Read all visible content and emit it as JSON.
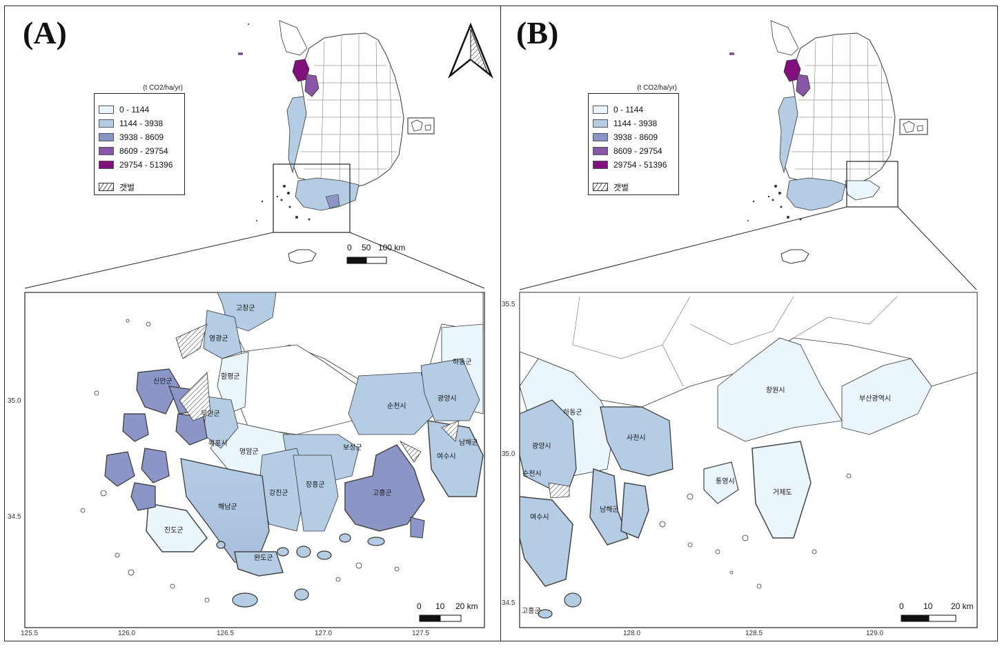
{
  "panels": {
    "a_label": "(A)",
    "b_label": "(B)"
  },
  "legend": {
    "unit": "(t CO2/ha/yr)",
    "classes": [
      {
        "label": "0 - 1144",
        "color": "#eaf6fb"
      },
      {
        "label": "1144 - 3938",
        "color": "#b4cde4"
      },
      {
        "label": "3938 - 8609",
        "color": "#8c96c6"
      },
      {
        "label": "8609 - 29754",
        "color": "#8856a7"
      },
      {
        "label": "29754 - 51396",
        "color": "#810f7c"
      }
    ],
    "tidal_flat_label": "갯벌"
  },
  "scalebar_main": {
    "ticks": [
      "0",
      "50",
      "100 km"
    ]
  },
  "scalebar_inset": {
    "ticks": [
      "0",
      "10",
      "20 km"
    ]
  },
  "north_arrow": "north-arrow",
  "inset_a": {
    "x_ticks": [
      "125.5",
      "126.0",
      "126.5",
      "127.0",
      "127.5"
    ],
    "y_ticks": [
      "35.0",
      "34.5"
    ],
    "regions": [
      "고창군",
      "영광군",
      "함평군",
      "신안군",
      "무안군",
      "목포시",
      "영암군",
      "진도군",
      "해남군",
      "강진군",
      "장흥군",
      "보성군",
      "순천시",
      "광양시",
      "하동군",
      "남해군",
      "여수시",
      "고흥군",
      "완도군"
    ]
  },
  "inset_b": {
    "x_ticks": [
      "128.0",
      "128.5",
      "129.0"
    ],
    "y_ticks": [
      "35.5",
      "35.0",
      "34.5"
    ],
    "regions": [
      "하동군",
      "광양시",
      "순천시",
      "여수시",
      "남해군",
      "사천시",
      "창원시",
      "부산광역시",
      "통영시",
      "거제도",
      "고흥군"
    ]
  }
}
